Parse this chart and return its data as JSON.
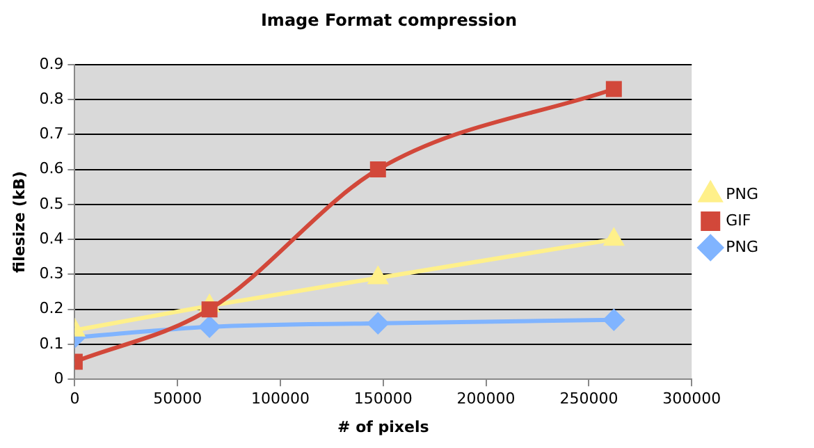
{
  "chart_data": {
    "type": "line",
    "title": "Image Format compression",
    "xlabel": "# of pixels",
    "ylabel": "filesize (kB)",
    "x": [
      0,
      65536,
      147456,
      262144
    ],
    "series": [
      {
        "name": "PNG",
        "color": "#fff08a",
        "marker": "triangle",
        "values": [
          0.14,
          0.21,
          0.29,
          0.4
        ]
      },
      {
        "name": "GIF",
        "color": "#d2483a",
        "marker": "square",
        "values": [
          0.05,
          0.2,
          0.6,
          0.83
        ]
      },
      {
        "name": "PNG",
        "color": "#80b4ff",
        "marker": "diamond",
        "values": [
          0.12,
          0.15,
          0.16,
          0.17
        ]
      }
    ],
    "xlim": [
      0,
      300000
    ],
    "xticks": [
      0,
      50000,
      100000,
      150000,
      200000,
      250000,
      300000
    ],
    "ylim": [
      0,
      0.9
    ],
    "yticks": [
      0,
      0.1,
      0.2,
      0.3,
      0.4,
      0.5,
      0.6,
      0.7,
      0.8,
      0.9
    ],
    "grid": "y",
    "legend": "right"
  }
}
